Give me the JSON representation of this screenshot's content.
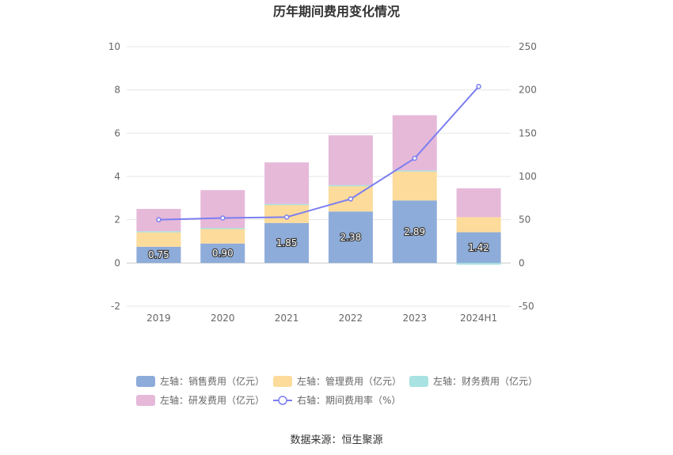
{
  "chart_data": {
    "type": "bar",
    "title": "历年期间费用变化情况",
    "categories": [
      "2019",
      "2020",
      "2021",
      "2022",
      "2023",
      "2024H1"
    ],
    "stacked": true,
    "y_left": {
      "ticks": [
        10,
        8,
        6,
        4,
        2,
        0,
        -2
      ],
      "range": [
        -2,
        10
      ]
    },
    "y_right": {
      "ticks": [
        250,
        200,
        150,
        100,
        50,
        0,
        -50
      ],
      "range": [
        -50,
        250
      ]
    },
    "series": [
      {
        "name": "左轴：销售费用（亿元）",
        "type": "bar",
        "axis": "left",
        "color": "#8eacd9",
        "values": [
          0.75,
          0.9,
          1.85,
          2.38,
          2.89,
          1.42
        ],
        "labels": [
          "0.75",
          "0.90",
          "1.85",
          "2.38",
          "2.89",
          "1.42"
        ]
      },
      {
        "name": "左轴：管理费用（亿元）",
        "type": "bar",
        "axis": "left",
        "color": "#fddb9b",
        "values": [
          0.7,
          0.7,
          0.85,
          1.2,
          1.35,
          0.7
        ]
      },
      {
        "name": "左轴：财务费用（亿元）",
        "type": "bar",
        "axis": "left",
        "color": "#a8e2e2",
        "values": [
          0.02,
          0.02,
          0.03,
          0.02,
          0.04,
          -0.08
        ]
      },
      {
        "name": "左轴：研发费用（亿元）",
        "type": "bar",
        "axis": "left",
        "color": "#e6b9d9",
        "values": [
          1.03,
          1.75,
          1.92,
          2.3,
          2.55,
          1.33
        ]
      },
      {
        "name": "右轴：期间费用率（%）",
        "type": "line",
        "axis": "right",
        "color": "#7b7ef0",
        "values": [
          50,
          52,
          53,
          74,
          121,
          204
        ]
      }
    ],
    "legend_position": "bottom",
    "grid": true
  },
  "source_text": "数据来源：恒生聚源"
}
